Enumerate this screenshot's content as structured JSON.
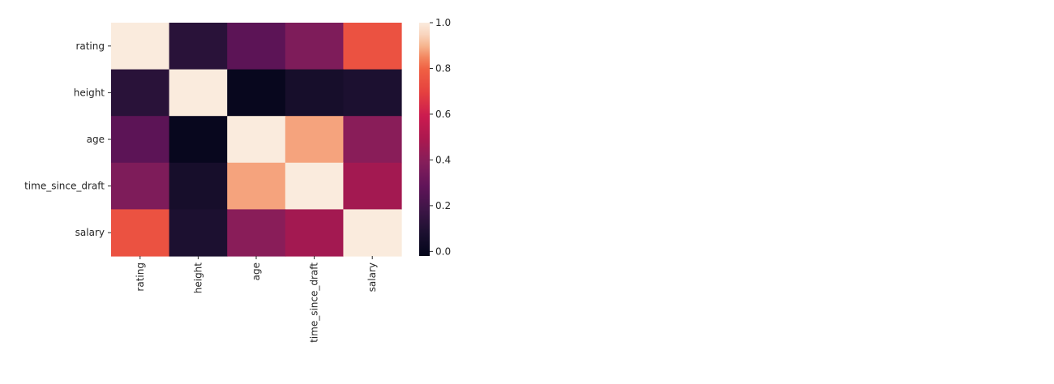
{
  "chart_data": {
    "type": "heatmap",
    "title": "",
    "xlabel": "",
    "ylabel": "",
    "row_labels": [
      "rating",
      "height",
      "age",
      "time_since_draft",
      "salary"
    ],
    "col_labels": [
      "rating",
      "height",
      "age",
      "time_since_draft",
      "salary"
    ],
    "values": [
      [
        1.0,
        0.12,
        0.27,
        0.37,
        0.75
      ],
      [
        0.12,
        1.0,
        0.0,
        0.06,
        0.08
      ],
      [
        0.27,
        0.0,
        1.0,
        0.88,
        0.4
      ],
      [
        0.37,
        0.06,
        0.88,
        1.0,
        0.47
      ],
      [
        0.75,
        0.08,
        0.4,
        0.47,
        1.0
      ]
    ],
    "colorbar": {
      "vmin": -0.02,
      "vmax": 1.0,
      "ticks": [
        0.0,
        0.2,
        0.4,
        0.6,
        0.8,
        1.0
      ],
      "tick_labels": [
        "0.0",
        "0.2",
        "0.4",
        "0.6",
        "0.8",
        "1.0"
      ],
      "colormap": "rocket",
      "colormap_stops": [
        [
          0.0,
          "#03051a"
        ],
        [
          0.1,
          "#1c1030"
        ],
        [
          0.2,
          "#3e1547"
        ],
        [
          0.3,
          "#611459"
        ],
        [
          0.4,
          "#841e5a"
        ],
        [
          0.5,
          "#ab184f"
        ],
        [
          0.6,
          "#cb1b4f"
        ],
        [
          0.7,
          "#e5403f"
        ],
        [
          0.8,
          "#f06043"
        ],
        [
          0.85,
          "#f3855e"
        ],
        [
          0.9,
          "#f6b48e"
        ],
        [
          0.95,
          "#f9d5be"
        ],
        [
          1.0,
          "#faebdd"
        ]
      ]
    },
    "grid": false
  }
}
